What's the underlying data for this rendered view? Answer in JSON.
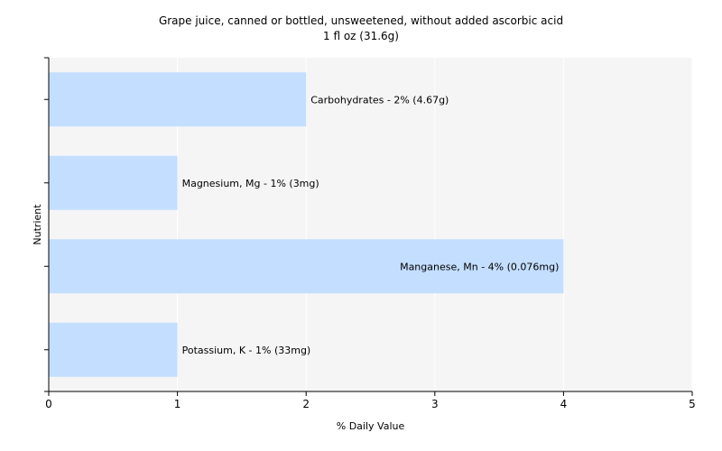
{
  "chart_data": {
    "type": "bar",
    "orientation": "horizontal",
    "title": "Grape juice, canned or bottled, unsweetened, without added ascorbic acid",
    "subtitle": "1 fl oz (31.6g)",
    "xlabel": "% Daily Value",
    "ylabel": "Nutrient",
    "xlim": [
      0,
      5
    ],
    "xticks": [
      "0",
      "1",
      "2",
      "3",
      "4",
      "5"
    ],
    "grid": true,
    "colors": {
      "bar": "#c4deff",
      "plot_bg": "#f5f5f5",
      "grid": "#ffffff",
      "axis": "#000000"
    },
    "bars": [
      {
        "value": 2,
        "label": "Carbohydrates - 2% (4.67g)"
      },
      {
        "value": 1,
        "label": "Magnesium, Mg - 1% (3mg)"
      },
      {
        "value": 4,
        "label": "Manganese, Mn - 4% (0.076mg)"
      },
      {
        "value": 1,
        "label": "Potassium, K - 1% (33mg)"
      }
    ]
  }
}
